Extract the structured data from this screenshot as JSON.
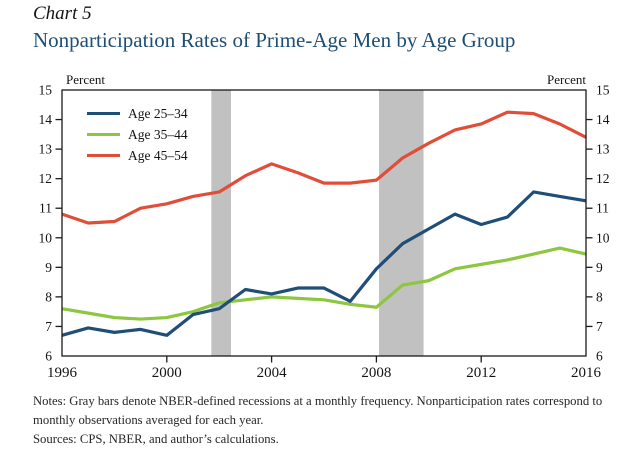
{
  "header": {
    "chart_label": "Chart 5",
    "title": "Nonparticipation Rates of Prime-Age Men by Age Group"
  },
  "chart_data": {
    "type": "line",
    "title": "Nonparticipation Rates of Prime-Age Men by Age Group",
    "xlabel": "",
    "ylabel": "Percent",
    "left_axis_unit": "Percent",
    "right_axis_unit": "Percent",
    "grid": false,
    "legend_position": "top-left",
    "xlim": [
      1996,
      2016
    ],
    "ylim": [
      6,
      15
    ],
    "ytick_step": 1,
    "xticks": [
      1996,
      2000,
      2004,
      2008,
      2012,
      2016
    ],
    "x": [
      1996,
      1997,
      1998,
      1999,
      2000,
      2001,
      2002,
      2003,
      2004,
      2005,
      2006,
      2007,
      2008,
      2009,
      2010,
      2011,
      2012,
      2013,
      2014,
      2015,
      2016
    ],
    "series": [
      {
        "name": "Age 25–34",
        "color": "#1f4e78",
        "values": [
          6.7,
          6.95,
          6.8,
          6.9,
          6.7,
          7.4,
          7.6,
          8.25,
          8.1,
          8.3,
          8.3,
          7.85,
          8.95,
          9.8,
          10.3,
          10.8,
          10.45,
          10.7,
          11.55,
          11.4,
          11.25
        ]
      },
      {
        "name": "Age 35–44",
        "color": "#8dc63f",
        "values": [
          7.6,
          7.45,
          7.3,
          7.25,
          7.3,
          7.5,
          7.8,
          7.9,
          8.0,
          7.95,
          7.9,
          7.75,
          7.65,
          8.4,
          8.55,
          8.95,
          9.1,
          9.25,
          9.45,
          9.65,
          9.45
        ]
      },
      {
        "name": "Age 45–54",
        "color": "#e04e39",
        "values": [
          10.8,
          10.5,
          10.55,
          11.0,
          11.15,
          11.4,
          11.55,
          12.1,
          12.5,
          12.2,
          11.85,
          11.85,
          11.95,
          12.7,
          13.2,
          13.65,
          13.85,
          14.25,
          14.2,
          13.85,
          13.4
        ]
      }
    ],
    "recession_bands": [
      {
        "x0": 2001.7,
        "x1": 2002.45
      },
      {
        "x0": 2008.1,
        "x1": 2009.8
      }
    ],
    "band_color": "#c1c1c1"
  },
  "notes": {
    "notes_text": "Notes: Gray bars denote NBER-defined recessions at a monthly frequency. Nonparticipation rates correspond to monthly observations averaged for each year.",
    "sources_text": "Sources: CPS, NBER, and author’s calculations."
  }
}
